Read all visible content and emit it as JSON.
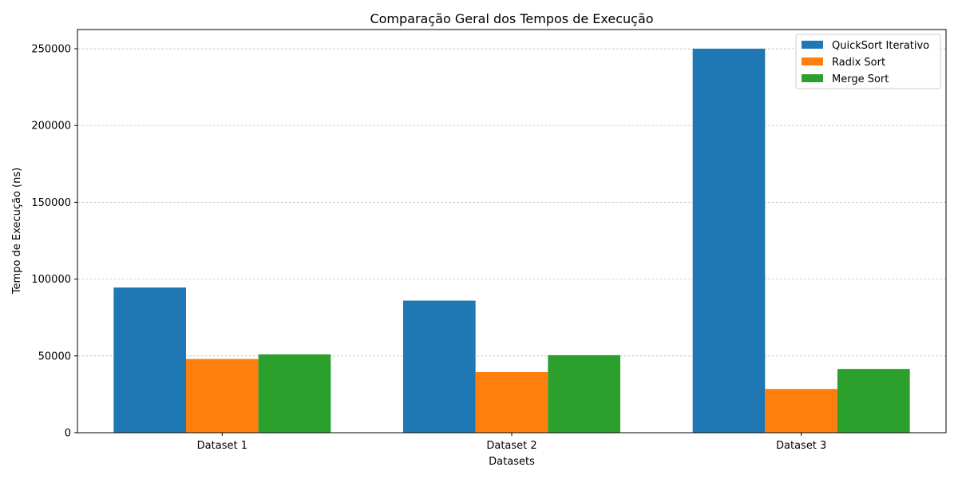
{
  "chart_data": {
    "type": "bar",
    "title": "Comparação Geral dos Tempos de Execução",
    "xlabel": "Datasets",
    "ylabel": "Tempo de Execução (ns)",
    "categories": [
      "Dataset 1",
      "Dataset 2",
      "Dataset 3"
    ],
    "series": [
      {
        "name": "QuickSort Iterativo",
        "color": "#1f77b4",
        "values": [
          94500,
          86000,
          250000
        ]
      },
      {
        "name": "Radix Sort",
        "color": "#ff7f0e",
        "values": [
          48000,
          39500,
          28500
        ]
      },
      {
        "name": "Merge Sort",
        "color": "#2ca02c",
        "values": [
          51000,
          50500,
          41500
        ]
      }
    ],
    "ylim": [
      0,
      262500
    ],
    "yticks": [
      0,
      50000,
      100000,
      150000,
      200000,
      250000
    ],
    "grid": "horizontal dashed",
    "legend_position": "top-right"
  }
}
